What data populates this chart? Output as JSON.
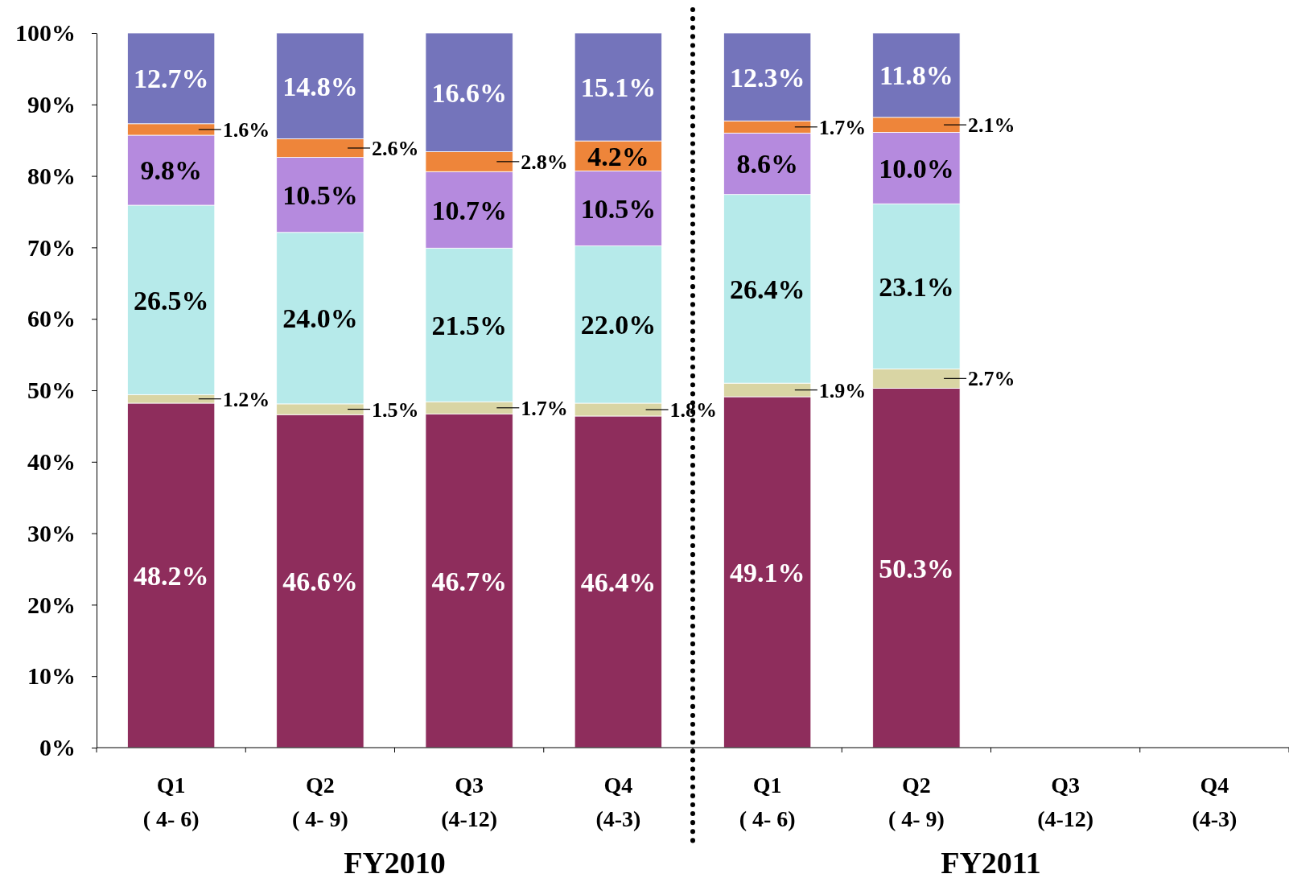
{
  "chart_data": {
    "type": "bar",
    "stacked": true,
    "categories": [
      "Q1\n( 4- 6)",
      "Q2\n( 4- 9)",
      "Q3\n(4-12)",
      "Q4\n(4-3)",
      "Q1\n( 4- 6)",
      "Q2\n( 4- 9)",
      "Q3\n(4-12)",
      "Q4\n(4-3)"
    ],
    "series": [
      {
        "color": "#8e2d5c",
        "values": [
          48.2,
          46.6,
          46.7,
          46.4,
          49.1,
          50.3,
          null,
          null
        ],
        "value_labels": [
          "48.2%",
          "46.6%",
          "46.7%",
          "46.4%",
          "49.1%",
          "50.3%",
          null,
          null
        ]
      },
      {
        "color": "#d9d5a4",
        "values": [
          1.2,
          1.5,
          1.7,
          1.8,
          1.9,
          2.7,
          null,
          null
        ],
        "value_labels": [
          "1.2%",
          "1.5%",
          "1.7%",
          "1.8%",
          "1.9%",
          "2.7%",
          null,
          null
        ]
      },
      {
        "color": "#b6eaea",
        "values": [
          26.5,
          24.0,
          21.5,
          22.0,
          26.4,
          23.1,
          null,
          null
        ],
        "value_labels": [
          "26.5%",
          "24.0%",
          "21.5%",
          "22.0%",
          "26.4%",
          "23.1%",
          null,
          null
        ]
      },
      {
        "color": "#b58ade",
        "values": [
          9.8,
          10.5,
          10.7,
          10.5,
          8.6,
          10.0,
          null,
          null
        ],
        "value_labels": [
          "9.8%",
          "10.5%",
          "10.7%",
          "10.5%",
          "8.6%",
          "10.0%",
          null,
          null
        ]
      },
      {
        "color": "#ee853a",
        "values": [
          1.6,
          2.6,
          2.8,
          4.2,
          1.7,
          2.1,
          null,
          null
        ],
        "value_labels": [
          "1.6%",
          "2.6%",
          "2.8%",
          "4.2%",
          "1.7%",
          "2.1%",
          null,
          null
        ]
      },
      {
        "color": "#7474bb",
        "values": [
          12.7,
          14.8,
          16.6,
          15.1,
          12.3,
          11.8,
          null,
          null
        ],
        "value_labels": [
          "12.7%",
          "14.8%",
          "16.6%",
          "15.1%",
          "12.3%",
          "11.8%",
          null,
          null
        ]
      }
    ],
    "ylim": [
      0,
      100
    ],
    "yticks": [
      {
        "value": 0,
        "label": "0%"
      },
      {
        "value": 10,
        "label": "10%"
      },
      {
        "value": 20,
        "label": "20%"
      },
      {
        "value": 30,
        "label": "30%"
      },
      {
        "value": 40,
        "label": "40%"
      },
      {
        "value": 50,
        "label": "50%"
      },
      {
        "value": 60,
        "label": "60%"
      },
      {
        "value": 70,
        "label": "70%"
      },
      {
        "value": 80,
        "label": "80%"
      },
      {
        "value": 90,
        "label": "90%"
      },
      {
        "value": 100,
        "label": "100%"
      }
    ],
    "annotations": [
      "FY2010",
      "FY2011"
    ]
  }
}
